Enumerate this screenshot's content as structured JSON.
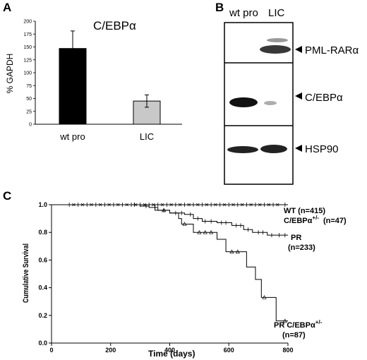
{
  "panels": {
    "a": "A",
    "b": "B",
    "c": "C"
  },
  "chart_data": [
    {
      "type": "bar",
      "title": "C/EBPα",
      "ylabel": "% GAPDH",
      "xlabel": "",
      "categories": [
        "wt pro",
        "LIC"
      ],
      "values": [
        147,
        45
      ],
      "errors": [
        34,
        12
      ],
      "ylim": [
        0,
        200
      ],
      "yticks": [
        "0",
        "25",
        "50",
        "75",
        "100",
        "125",
        "150",
        "175",
        "200"
      ],
      "colors": [
        "#000000",
        "#c8c8c8"
      ]
    },
    {
      "type": "line",
      "xlabel": "Time (days)",
      "ylabel": "Cumulative Survival",
      "xlim": [
        0,
        800
      ],
      "ylim": [
        0,
        1.0
      ],
      "xticks": [
        "0",
        "200",
        "400",
        "600",
        "800"
      ],
      "yticks": [
        "0.0",
        "0.2",
        "0.4",
        "0.6",
        "0.8",
        "1.0"
      ],
      "series": [
        {
          "name": "WT (n=415)",
          "points": [
            [
              0,
              1.0
            ],
            [
              800,
              1.0
            ]
          ],
          "censor": [
            60,
            90,
            120,
            150,
            180,
            210,
            240,
            270,
            300,
            330,
            360,
            390,
            420,
            450,
            480,
            510,
            540,
            570,
            600,
            630,
            660,
            690,
            720,
            750,
            790
          ]
        },
        {
          "name": "C/EBPα+/- (n=47)",
          "points": [
            [
              0,
              1.0
            ],
            [
              800,
              1.0
            ]
          ],
          "censor": [
            75,
            105,
            135,
            165,
            195,
            225,
            255,
            285,
            315,
            345,
            375,
            405,
            435,
            465,
            495,
            525,
            555,
            585,
            615,
            645,
            675,
            705,
            735,
            765
          ]
        },
        {
          "name": "PR (n=233)",
          "points": [
            [
              0,
              1.0
            ],
            [
              250,
              1.0
            ],
            [
              300,
              0.99
            ],
            [
              330,
              0.98
            ],
            [
              360,
              0.96
            ],
            [
              400,
              0.94
            ],
            [
              450,
              0.93
            ],
            [
              480,
              0.9
            ],
            [
              510,
              0.88
            ],
            [
              560,
              0.87
            ],
            [
              610,
              0.85
            ],
            [
              650,
              0.82
            ],
            [
              680,
              0.8
            ],
            [
              730,
              0.78
            ],
            [
              800,
              0.78
            ]
          ],
          "censor": [
            280,
            320,
            350,
            380,
            420,
            440,
            470,
            495,
            520,
            540,
            575,
            590,
            625,
            640,
            665,
            700,
            715,
            745,
            770,
            790
          ]
        },
        {
          "name": "PR C/EBPα+/- (n=87)",
          "points": [
            [
              0,
              1.0
            ],
            [
              320,
              1.0
            ],
            [
              350,
              0.96
            ],
            [
              400,
              0.94
            ],
            [
              430,
              0.9
            ],
            [
              440,
              0.86
            ],
            [
              480,
              0.8
            ],
            [
              560,
              0.75
            ],
            [
              590,
              0.66
            ],
            [
              660,
              0.55
            ],
            [
              690,
              0.46
            ],
            [
              710,
              0.33
            ],
            [
              760,
              0.16
            ],
            [
              800,
              0.16
            ]
          ],
          "censor": [
            380,
            450,
            500,
            520,
            540,
            610,
            630,
            720,
            790
          ]
        }
      ]
    }
  ],
  "blot": {
    "lanes": [
      "wt pro",
      "LIC"
    ],
    "bands": [
      "PML-RARα",
      "C/EBPα",
      "HSP90"
    ]
  },
  "km_labels": {
    "wt": "WT (n=415)",
    "het_name": "C/EBPα",
    "het_sup": "+/-",
    "het_n": "(n=47)",
    "pr": "PR",
    "pr_n": "(n=233)",
    "prhet_name": "PR C/EBPα",
    "prhet_sup": "+/-",
    "prhet_n": "(n=87)"
  }
}
